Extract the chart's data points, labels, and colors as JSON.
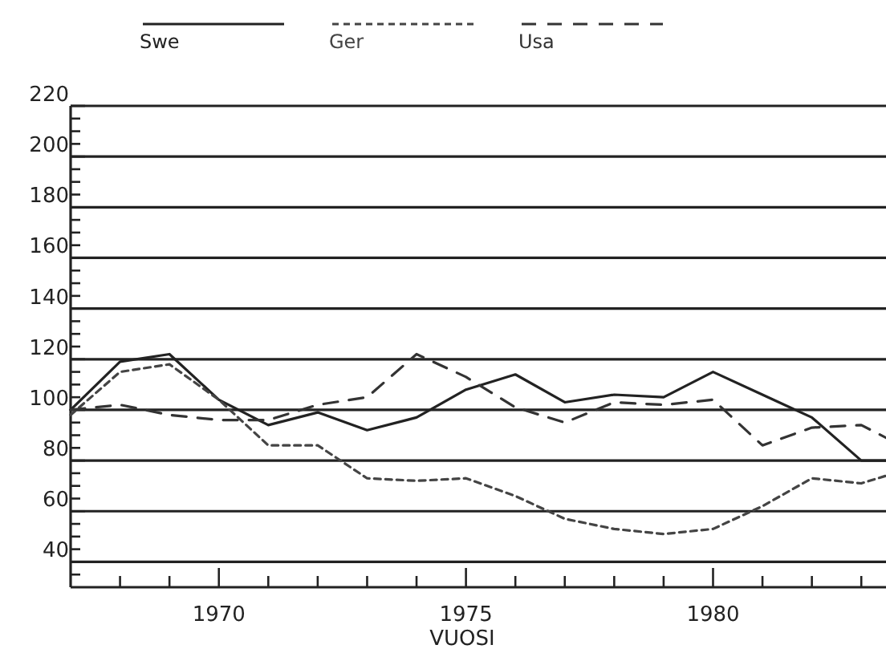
{
  "chart_data": {
    "type": "line",
    "xlabel": "VUOSI",
    "x": [
      1967,
      1968,
      1969,
      1970,
      1971,
      1972,
      1973,
      1974,
      1975,
      1976,
      1977,
      1978,
      1979,
      1980,
      1981,
      1982,
      1983,
      1983.5
    ],
    "series": [
      {
        "name": "Swe",
        "color": "#222222",
        "line_style": "solid",
        "values": [
          100,
          119,
          122,
          104,
          94,
          99,
          92,
          97,
          108,
          114,
          103,
          106,
          105,
          115,
          106,
          97,
          80,
          80
        ]
      },
      {
        "name": "Ger",
        "color": "#444444",
        "line_style": "dotted",
        "values": [
          98,
          115,
          118,
          104,
          86,
          86,
          73,
          72,
          73,
          66,
          57,
          53,
          51,
          53,
          62,
          73,
          71,
          74
        ]
      },
      {
        "name": "Usa",
        "color": "#333333",
        "line_style": "dashed",
        "values": [
          100,
          102,
          98,
          96,
          96,
          102,
          105,
          122,
          113,
          101,
          95,
          103,
          102,
          104,
          86,
          93,
          94,
          89
        ]
      }
    ],
    "xlim": [
      1967,
      1983.5
    ],
    "xticks": [
      {
        "value": 1968,
        "label": null
      },
      {
        "value": 1969,
        "label": null
      },
      1970,
      {
        "value": 1971,
        "label": null
      },
      {
        "value": 1972,
        "label": null
      },
      {
        "value": 1973,
        "label": null
      },
      {
        "value": 1974,
        "label": null
      },
      1975,
      {
        "value": 1976,
        "label": null
      },
      {
        "value": 1977,
        "label": null
      },
      {
        "value": 1978,
        "label": null
      },
      {
        "value": 1979,
        "label": null
      },
      1980,
      {
        "value": 1981,
        "label": null
      },
      {
        "value": 1982,
        "label": null
      },
      {
        "value": 1983,
        "label": null
      }
    ],
    "ylim": [
      30,
      220
    ],
    "yticks": [
      {
        "value": 35,
        "label": null
      },
      40,
      {
        "value": 45,
        "label": null
      },
      {
        "value": 50,
        "label": null
      },
      {
        "value": 55,
        "label": null
      },
      60,
      {
        "value": 65,
        "label": null
      },
      {
        "value": 70,
        "label": null
      },
      {
        "value": 75,
        "label": null
      },
      80,
      {
        "value": 85,
        "label": null
      },
      {
        "value": 90,
        "label": null
      },
      {
        "value": 95,
        "label": null
      },
      100,
      {
        "value": 105,
        "label": null
      },
      {
        "value": 110,
        "label": null
      },
      {
        "value": 115,
        "label": null
      },
      120,
      {
        "value": 125,
        "label": null
      },
      {
        "value": 130,
        "label": null
      },
      {
        "value": 135,
        "label": null
      },
      140,
      {
        "value": 145,
        "label": null
      },
      {
        "value": 150,
        "label": null
      },
      {
        "value": 155,
        "label": null
      },
      160,
      {
        "value": 165,
        "label": null
      },
      {
        "value": 170,
        "label": null
      },
      {
        "value": 175,
        "label": null
      },
      180,
      {
        "value": 185,
        "label": null
      },
      {
        "value": 190,
        "label": null
      },
      {
        "value": 195,
        "label": null
      },
      200,
      {
        "value": 205,
        "label": null
      },
      {
        "value": 210,
        "label": null
      },
      {
        "value": 215,
        "label": null
      },
      220
    ],
    "grid": "y",
    "legend": "top",
    "marker": "none"
  }
}
